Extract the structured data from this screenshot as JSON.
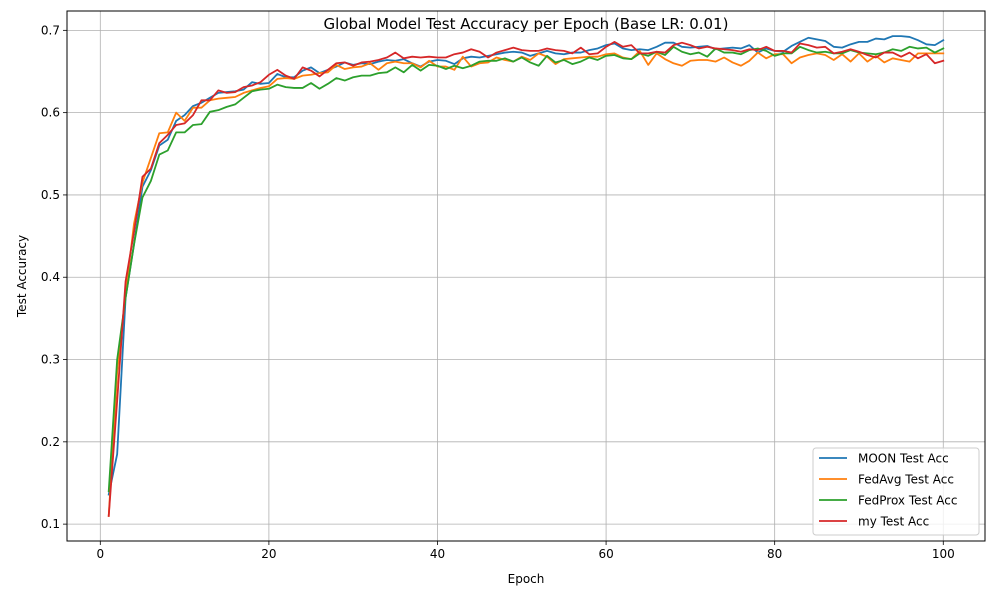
{
  "chart_data": {
    "type": "line",
    "title": "Global Model Test Accuracy per Epoch (Base LR: 0.01)",
    "xlabel": "Epoch",
    "ylabel": "Test Accuracy",
    "xlim": [
      -3.95,
      104.95
    ],
    "ylim": [
      0.0795,
      0.7235
    ],
    "xticks": [
      0,
      20,
      40,
      60,
      80,
      100
    ],
    "yticks": [
      0.1,
      0.2,
      0.3,
      0.4,
      0.5,
      0.6,
      0.7
    ],
    "xtick_labels": [
      "0",
      "20",
      "40",
      "60",
      "80",
      "100"
    ],
    "ytick_labels": [
      "0.1",
      "0.2",
      "0.3",
      "0.4",
      "0.5",
      "0.6",
      "0.7"
    ],
    "grid": true,
    "legend_position": "lower right",
    "x_start": 1,
    "series": [
      {
        "name": "MOON Test Acc",
        "color": "#1f77b4",
        "values": [
          0.136,
          0.185,
          0.375,
          0.44,
          0.51,
          0.53,
          0.56,
          0.567,
          0.59,
          0.597,
          0.608,
          0.612,
          0.618,
          0.624,
          0.625,
          0.626,
          0.628,
          0.637,
          0.635,
          0.636,
          0.647,
          0.643,
          0.643,
          0.651,
          0.655,
          0.648,
          0.652,
          0.656,
          0.661,
          0.658,
          0.66,
          0.659,
          0.662,
          0.664,
          0.663,
          0.665,
          0.66,
          0.656,
          0.662,
          0.664,
          0.663,
          0.659,
          0.666,
          0.668,
          0.667,
          0.669,
          0.671,
          0.673,
          0.674,
          0.673,
          0.669,
          0.672,
          0.675,
          0.672,
          0.671,
          0.673,
          0.673,
          0.676,
          0.678,
          0.682,
          0.684,
          0.678,
          0.676,
          0.677,
          0.676,
          0.68,
          0.685,
          0.685,
          0.68,
          0.679,
          0.68,
          0.681,
          0.677,
          0.678,
          0.679,
          0.678,
          0.682,
          0.673,
          0.678,
          0.675,
          0.674,
          0.681,
          0.686,
          0.691,
          0.689,
          0.687,
          0.68,
          0.679,
          0.683,
          0.686,
          0.686,
          0.69,
          0.689,
          0.693,
          0.693,
          0.692,
          0.688,
          0.683,
          0.682,
          0.688
        ]
      },
      {
        "name": "FedAvg Test Acc",
        "color": "#ff7f0e",
        "values": [
          0.11,
          0.285,
          0.38,
          0.465,
          0.515,
          0.545,
          0.575,
          0.576,
          0.6,
          0.59,
          0.606,
          0.606,
          0.615,
          0.617,
          0.618,
          0.619,
          0.624,
          0.627,
          0.63,
          0.632,
          0.641,
          0.642,
          0.641,
          0.645,
          0.646,
          0.648,
          0.649,
          0.658,
          0.653,
          0.655,
          0.656,
          0.66,
          0.652,
          0.66,
          0.662,
          0.66,
          0.66,
          0.655,
          0.663,
          0.656,
          0.656,
          0.652,
          0.668,
          0.656,
          0.66,
          0.661,
          0.667,
          0.664,
          0.662,
          0.668,
          0.664,
          0.672,
          0.668,
          0.659,
          0.665,
          0.666,
          0.667,
          0.668,
          0.668,
          0.671,
          0.672,
          0.667,
          0.665,
          0.675,
          0.658,
          0.672,
          0.665,
          0.66,
          0.657,
          0.663,
          0.664,
          0.664,
          0.662,
          0.667,
          0.661,
          0.657,
          0.663,
          0.673,
          0.666,
          0.671,
          0.671,
          0.66,
          0.667,
          0.67,
          0.672,
          0.67,
          0.664,
          0.671,
          0.662,
          0.672,
          0.662,
          0.669,
          0.661,
          0.666,
          0.664,
          0.662,
          0.672,
          0.672,
          0.672,
          0.672
        ]
      },
      {
        "name": "FedProx Test Acc",
        "color": "#2ca02c",
        "values": [
          0.14,
          0.3,
          0.375,
          0.44,
          0.497,
          0.517,
          0.549,
          0.554,
          0.576,
          0.576,
          0.585,
          0.586,
          0.601,
          0.603,
          0.607,
          0.61,
          0.618,
          0.626,
          0.628,
          0.629,
          0.634,
          0.631,
          0.63,
          0.63,
          0.636,
          0.629,
          0.635,
          0.642,
          0.639,
          0.643,
          0.645,
          0.645,
          0.648,
          0.649,
          0.655,
          0.649,
          0.658,
          0.651,
          0.658,
          0.657,
          0.653,
          0.657,
          0.654,
          0.657,
          0.662,
          0.663,
          0.663,
          0.666,
          0.662,
          0.667,
          0.661,
          0.657,
          0.669,
          0.661,
          0.664,
          0.659,
          0.662,
          0.667,
          0.664,
          0.669,
          0.67,
          0.666,
          0.665,
          0.672,
          0.669,
          0.674,
          0.67,
          0.68,
          0.674,
          0.671,
          0.673,
          0.668,
          0.678,
          0.673,
          0.673,
          0.671,
          0.676,
          0.678,
          0.675,
          0.669,
          0.672,
          0.672,
          0.68,
          0.676,
          0.673,
          0.674,
          0.672,
          0.672,
          0.676,
          0.673,
          0.672,
          0.671,
          0.673,
          0.677,
          0.675,
          0.68,
          0.678,
          0.679,
          0.673,
          0.678
        ]
      },
      {
        "name": "my Test Acc",
        "color": "#d62728",
        "values": [
          0.11,
          0.25,
          0.395,
          0.455,
          0.522,
          0.532,
          0.563,
          0.573,
          0.585,
          0.587,
          0.597,
          0.615,
          0.615,
          0.627,
          0.624,
          0.625,
          0.631,
          0.633,
          0.637,
          0.646,
          0.652,
          0.645,
          0.641,
          0.655,
          0.651,
          0.644,
          0.652,
          0.66,
          0.661,
          0.657,
          0.661,
          0.662,
          0.664,
          0.667,
          0.673,
          0.666,
          0.668,
          0.667,
          0.668,
          0.667,
          0.667,
          0.671,
          0.673,
          0.677,
          0.674,
          0.667,
          0.673,
          0.676,
          0.679,
          0.676,
          0.675,
          0.675,
          0.678,
          0.676,
          0.675,
          0.672,
          0.679,
          0.671,
          0.672,
          0.68,
          0.686,
          0.68,
          0.682,
          0.672,
          0.672,
          0.674,
          0.673,
          0.682,
          0.685,
          0.682,
          0.678,
          0.68,
          0.678,
          0.677,
          0.676,
          0.674,
          0.677,
          0.676,
          0.68,
          0.675,
          0.675,
          0.673,
          0.684,
          0.682,
          0.679,
          0.68,
          0.672,
          0.674,
          0.677,
          0.674,
          0.67,
          0.667,
          0.673,
          0.673,
          0.668,
          0.673,
          0.666,
          0.671,
          0.66,
          0.663
        ]
      }
    ]
  }
}
